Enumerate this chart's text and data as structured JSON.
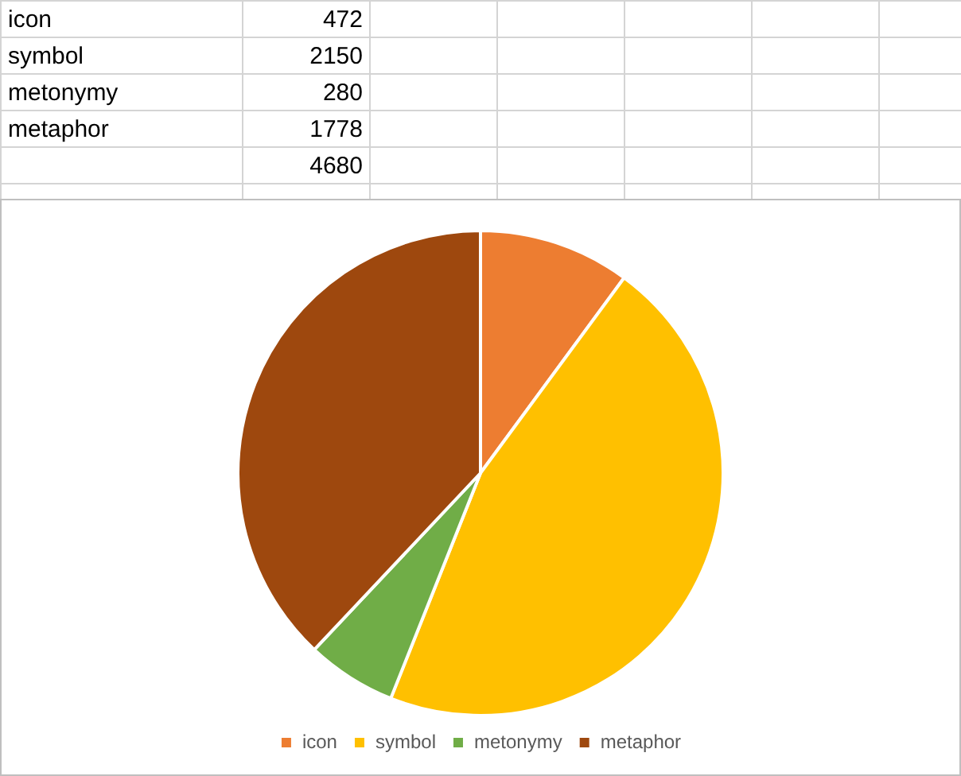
{
  "chart_data": [
    {
      "type": "other",
      "annotations": [
        "icon",
        "472",
        "symbol",
        "2150",
        "metonymy",
        "280",
        "metaphor",
        "1778",
        "4680"
      ]
    },
    {
      "type": "pie",
      "categories": [
        "icon",
        "symbol",
        "metonymy",
        "metaphor"
      ],
      "values": [
        10.09,
        45.94,
        5.98,
        37.99
      ],
      "colors": [
        "#ed7d31",
        "#ffc000",
        "#70ad47",
        "#9e480e"
      ],
      "legend": "bottom"
    }
  ]
}
